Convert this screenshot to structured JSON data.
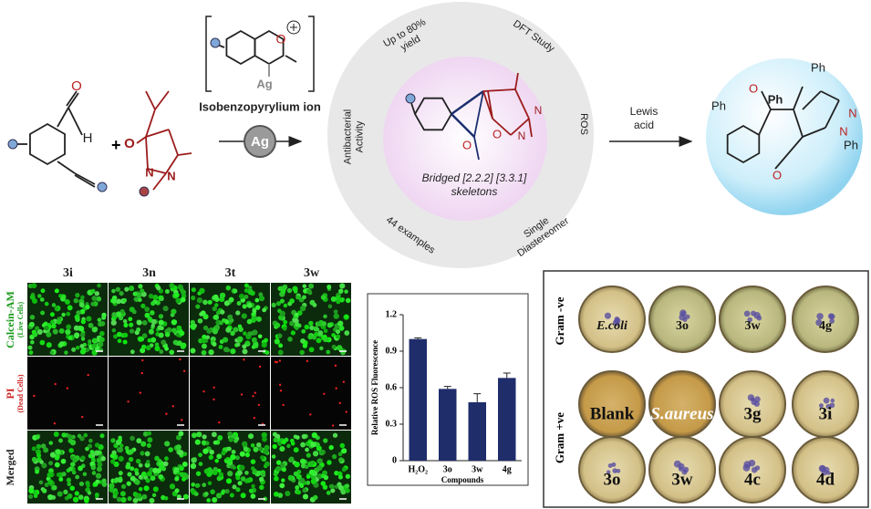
{
  "scheme": {
    "aldehyde": [
      "O",
      "H"
    ],
    "pyrazolone": [
      "O",
      "N",
      "N"
    ],
    "intermediate": {
      "atoms": [
        "O",
        "Ag"
      ],
      "name": "Isobenzopyrylium ion"
    },
    "catalyst": "Ag",
    "features": [
      [
        "Up to 80%",
        "yield"
      ],
      [
        "DFT Study"
      ],
      [
        "ROS"
      ],
      [
        "Single",
        "Diastereomer"
      ],
      [
        "44 examples"
      ],
      [
        "Antibacterial",
        "Activity"
      ]
    ],
    "core_product": {
      "atoms": [
        "O",
        "O",
        "N",
        "N"
      ],
      "caption": [
        "Bridged [2.2.2] [3.3.1]",
        "skeletons"
      ]
    },
    "conditions": [
      "Lewis",
      "acid"
    ],
    "final_product": [
      "Ph",
      "O",
      "Ph",
      "Ph",
      "N",
      "N",
      "Ph",
      "O"
    ]
  },
  "cell_imaging": {
    "columns": [
      "3i",
      "3n",
      "3t",
      "3w"
    ],
    "rows": [
      [
        "Calcein-AM",
        "(Live Cells)"
      ],
      [
        "PI",
        "(Dead Cells)"
      ],
      [
        "Merged"
      ]
    ]
  },
  "chart_data": {
    "type": "bar",
    "y_label": "Relative ROS Fluorescence",
    "x_label": "Compounds",
    "categories": [
      "H₂O₂",
      "3o",
      "3w",
      "4g"
    ],
    "values": [
      1.0,
      0.59,
      0.48,
      0.68
    ],
    "errors": [
      0.01,
      0.02,
      0.07,
      0.04
    ],
    "color": "#1f2d6b",
    "ylim": [
      0,
      1.2
    ],
    "yticks": [
      0,
      0.3,
      0.6,
      0.9,
      1.2
    ]
  },
  "antibacterial": {
    "groups": [
      "Gram -ve",
      "Gram +ve"
    ],
    "plates": [
      [
        "E.coli",
        "3o",
        "3w",
        "4g"
      ],
      [
        "Blank",
        "S.aureus",
        "3g",
        "3i"
      ],
      [
        "3o",
        "3w",
        "4c",
        "4d"
      ]
    ]
  }
}
